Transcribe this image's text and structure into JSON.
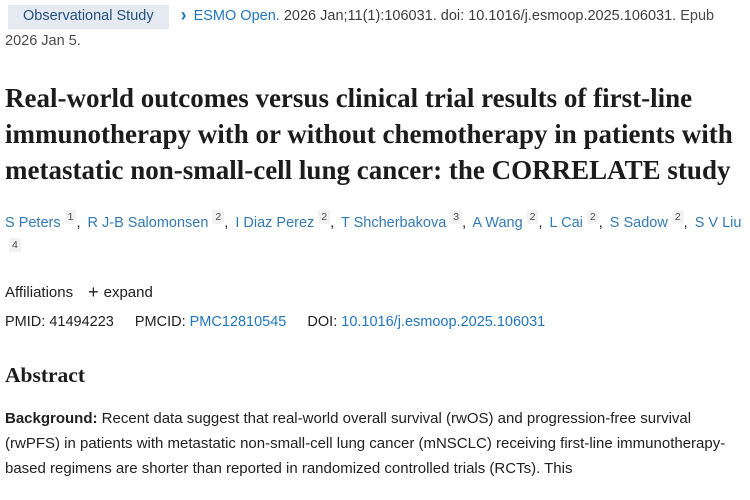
{
  "colors": {
    "link_blue": "#2176bd",
    "badge_background": "#e4e9f2",
    "badge_text": "#23527c",
    "body_text": "#212121"
  },
  "icons": {
    "chevron_right": "›",
    "plus": "+"
  },
  "topbar": {
    "publication_type": "Observational Study",
    "journal": "ESMO Open.",
    "citation": "2026 Jan;11(1):106031. doi: 10.1016/j.esmoop.2025.106031.",
    "epub": "Epub 2026 Jan 5."
  },
  "title": "Real-world outcomes versus clinical trial results of first-line immunotherapy with or without chemotherapy in patients with metastatic non-small-cell lung cancer: the CORRELATE study",
  "authors_separator": ",",
  "authors": [
    {
      "name": "S Peters",
      "sup": "1"
    },
    {
      "name": "R J-B Salomonsen",
      "sup": "2"
    },
    {
      "name": "I Diaz Perez",
      "sup": "2"
    },
    {
      "name": "T Shcherbakova",
      "sup": "3"
    },
    {
      "name": "A Wang",
      "sup": "2"
    },
    {
      "name": "L Cai",
      "sup": "2"
    },
    {
      "name": "S Sadow",
      "sup": "2"
    },
    {
      "name": "S V Liu",
      "sup": "4"
    }
  ],
  "affiliations": {
    "label": "Affiliations",
    "expand_label": "expand"
  },
  "identifiers": {
    "pmid_label": "PMID:",
    "pmid_value": "41494223",
    "pmcid_label": "PMCID:",
    "pmcid_value": "PMC12810545",
    "doi_label": "DOI:",
    "doi_value": "10.1016/j.esmoop.2025.106031"
  },
  "abstract": {
    "heading": "Abstract",
    "background_label": "Background:",
    "background_text": " Recent data suggest that real-world overall survival (rwOS) and progression-free survival (rwPFS) in patients with metastatic non-small-cell lung cancer (mNSCLC) receiving first-line immunotherapy-based regimens are shorter than reported in randomized controlled trials (RCTs). This"
  }
}
